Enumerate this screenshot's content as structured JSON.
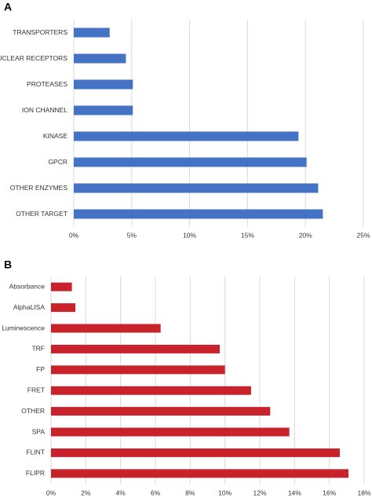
{
  "chart_data": [
    {
      "type": "bar",
      "label": "A",
      "orientation": "horizontal",
      "color": "#4472c4",
      "grid": true,
      "categories": [
        "TRANSPORTERS",
        "NUCLEAR RECEPTORS",
        "PROTEASES",
        "ION CHANNEL",
        "KINASE",
        "GPCR",
        "OTHER ENZYMES",
        "OTHER TARGET"
      ],
      "values": [
        3.1,
        4.5,
        5.1,
        5.1,
        19.4,
        20.1,
        21.1,
        21.5
      ],
      "xlim": [
        0,
        25
      ],
      "xticks": [
        {
          "value": 0,
          "label": "0%"
        },
        {
          "value": 5,
          "label": "5%"
        },
        {
          "value": 10,
          "label": "10%"
        },
        {
          "value": 15,
          "label": "15%"
        },
        {
          "value": 20,
          "label": "20%"
        },
        {
          "value": 25,
          "label": "25%"
        }
      ]
    },
    {
      "type": "bar",
      "label": "B",
      "orientation": "horizontal",
      "color": "#c8222b",
      "grid": true,
      "categories": [
        "Absorbance",
        "AlphaLISA",
        "Luminescence",
        "TRF",
        "FP",
        "FRET",
        "OTHER",
        "SPA",
        "FLINT",
        "FLIPR"
      ],
      "values": [
        1.2,
        1.4,
        6.3,
        9.7,
        10.0,
        11.5,
        12.6,
        13.7,
        16.6,
        17.1
      ],
      "xlim": [
        0,
        18
      ],
      "xticks": [
        {
          "value": 0,
          "label": "0%"
        },
        {
          "value": 2,
          "label": "2%"
        },
        {
          "value": 4,
          "label": "4%"
        },
        {
          "value": 6,
          "label": "6%"
        },
        {
          "value": 8,
          "label": "8%"
        },
        {
          "value": 10,
          "label": "10%"
        },
        {
          "value": 12,
          "label": "12%"
        },
        {
          "value": 14,
          "label": "14%"
        },
        {
          "value": 16,
          "label": "16%"
        },
        {
          "value": 18,
          "label": "18%"
        }
      ]
    }
  ]
}
